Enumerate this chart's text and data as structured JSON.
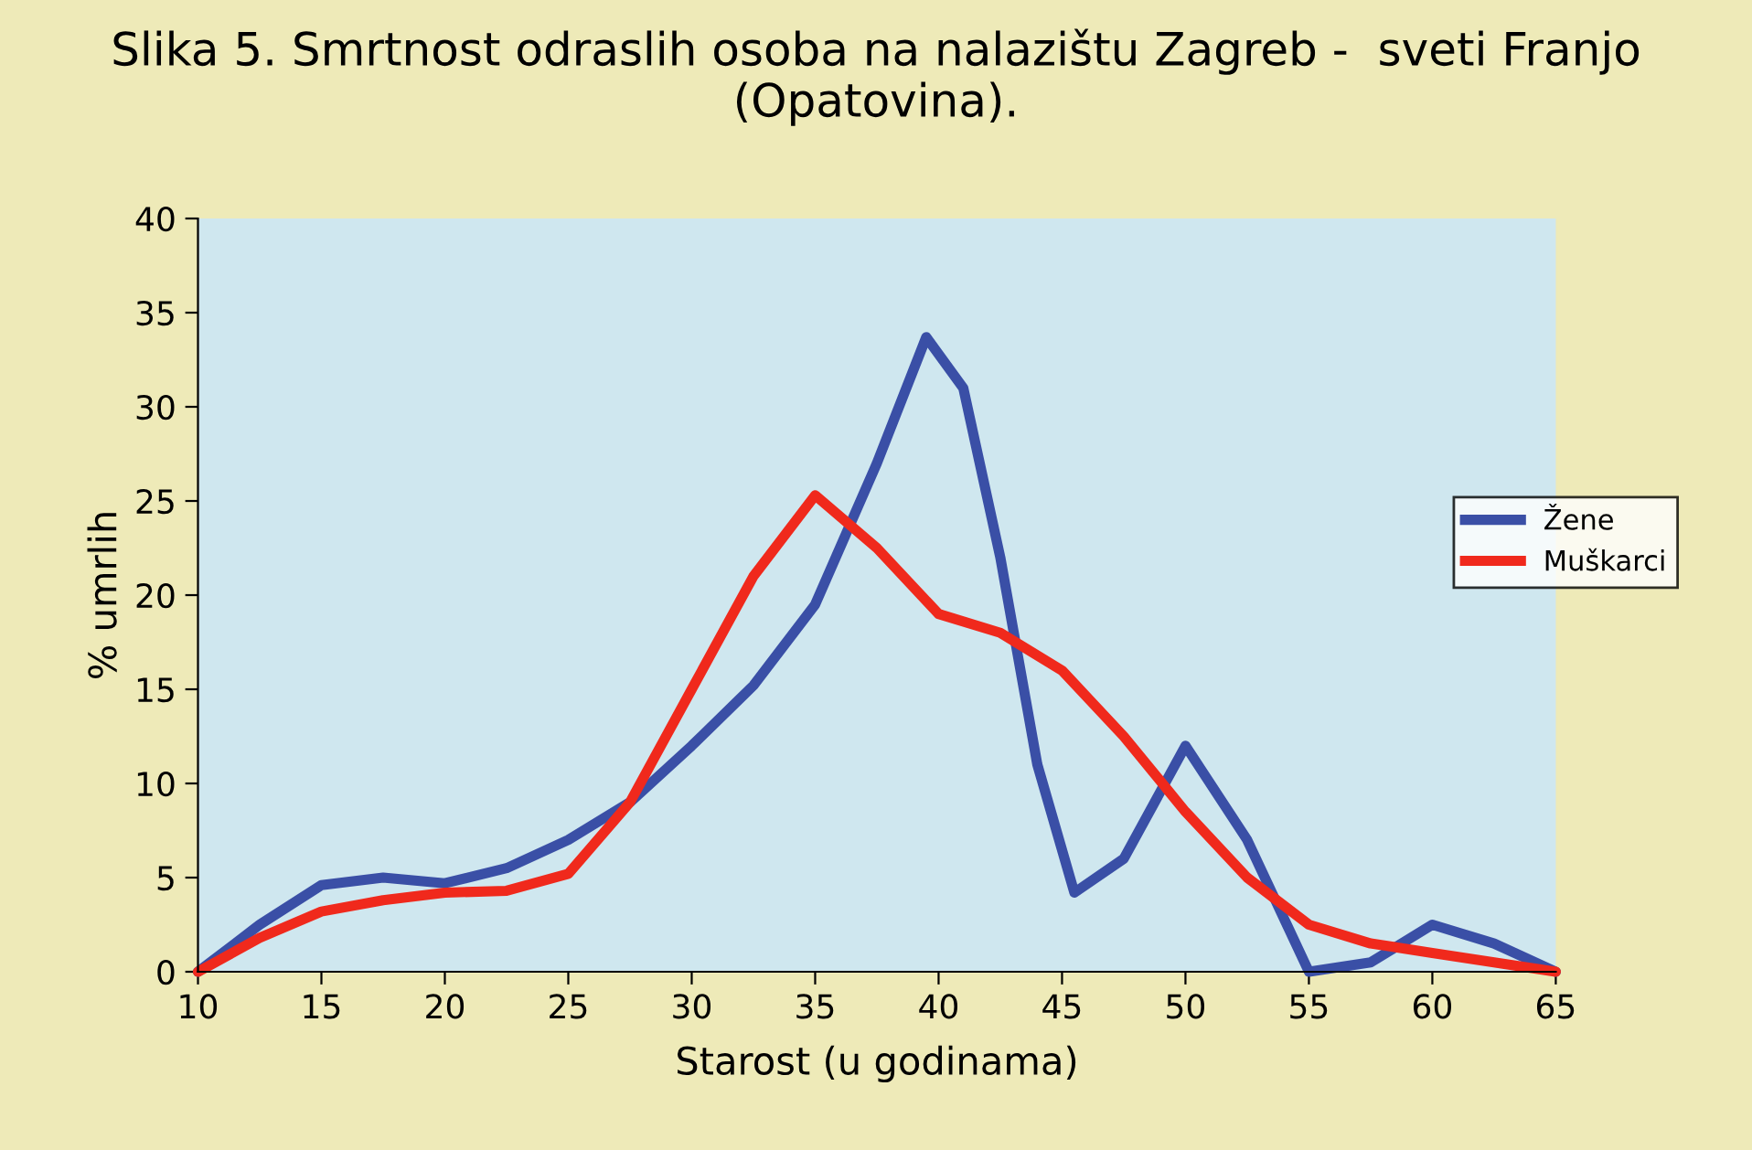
{
  "chart_data": {
    "type": "line",
    "title": "Slika 5. Smrtnost odraslih osoba na nalazištu Zagreb -  sveti Franjo (Opatovina).",
    "xlabel": "Starost (u godinama)",
    "ylabel": "% umrlih",
    "series": [
      {
        "name": "Žene",
        "color": "#3a4fa6",
        "x": [
          10,
          12.5,
          15,
          17.5,
          20,
          22.5,
          25,
          27.5,
          30,
          32.5,
          35,
          37.5,
          39.5,
          41,
          42.5,
          44,
          45.5,
          47.5,
          50,
          52.5,
          55,
          57.5,
          60,
          62.5,
          65
        ],
        "values": [
          0,
          2.5,
          4.6,
          5,
          4.7,
          5.5,
          7,
          9,
          12,
          15.2,
          19.5,
          27,
          33.7,
          31,
          22,
          11,
          4.2,
          6,
          12,
          7,
          0,
          0.5,
          2.5,
          1.5,
          0
        ]
      },
      {
        "name": "Muškarci",
        "color": "#f0291c",
        "x": [
          10,
          12.5,
          15,
          17.5,
          20,
          22.5,
          25,
          27.5,
          30,
          32.5,
          35,
          37.5,
          40,
          42.5,
          45,
          47.5,
          50,
          52.5,
          55,
          57.5,
          60,
          62.5,
          65
        ],
        "values": [
          0,
          1.8,
          3.2,
          3.8,
          4.2,
          4.3,
          5.2,
          9,
          15,
          21,
          25.3,
          22.5,
          19,
          18,
          16,
          12.5,
          8.5,
          5,
          2.5,
          1.5,
          1,
          0.5,
          0
        ]
      }
    ],
    "xlim": [
      10,
      65
    ],
    "xticks": [
      10,
      15,
      20,
      25,
      30,
      35,
      40,
      45,
      50,
      55,
      60,
      65
    ],
    "ylim": [
      0,
      40
    ],
    "yticks": [
      0,
      5,
      10,
      15,
      20,
      25,
      30,
      35,
      40
    ],
    "grid": false,
    "legend": "right",
    "marker": "none",
    "line_style": "solid"
  }
}
